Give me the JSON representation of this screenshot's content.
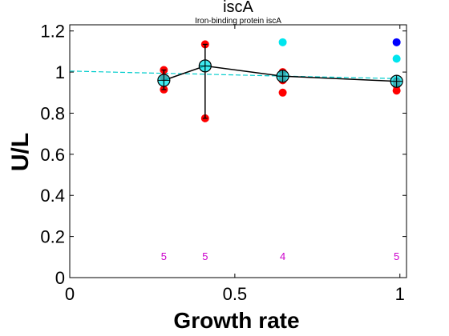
{
  "chart_data": {
    "type": "scatter",
    "title": "iscA",
    "subtitle": "Iron-binding protein iscA",
    "xlabel": "Growth rate",
    "ylabel": "U/L",
    "xlim": [
      0,
      1.02
    ],
    "ylim": [
      0,
      1.23
    ],
    "xticks": [
      {
        "v": 0,
        "label": "0"
      },
      {
        "v": 0.5,
        "label": "0.5"
      },
      {
        "v": 1,
        "label": "1"
      }
    ],
    "yticks": [
      {
        "v": 0,
        "label": "0"
      },
      {
        "v": 0.2,
        "label": "0.2"
      },
      {
        "v": 0.4,
        "label": "0.4"
      },
      {
        "v": 0.6,
        "label": "0.6"
      },
      {
        "v": 0.8,
        "label": "0.8"
      },
      {
        "v": 1,
        "label": "1"
      },
      {
        "v": 1.2,
        "label": "1.2"
      }
    ],
    "grid": false,
    "red_points": [
      {
        "x": 0.285,
        "y": 1.01
      },
      {
        "x": 0.285,
        "y": 0.975
      },
      {
        "x": 0.285,
        "y": 0.915
      },
      {
        "x": 0.41,
        "y": 1.135
      },
      {
        "x": 0.41,
        "y": 0.775
      },
      {
        "x": 0.645,
        "y": 1.0
      },
      {
        "x": 0.645,
        "y": 0.975
      },
      {
        "x": 0.645,
        "y": 0.96
      },
      {
        "x": 0.645,
        "y": 0.9
      },
      {
        "x": 0.99,
        "y": 0.955
      },
      {
        "x": 0.99,
        "y": 0.935
      },
      {
        "x": 0.99,
        "y": 0.91
      }
    ],
    "cyan_points": [
      {
        "x": 0.645,
        "y": 1.145
      },
      {
        "x": 0.99,
        "y": 1.065
      }
    ],
    "blue_points": [
      {
        "x": 0.99,
        "y": 1.145
      }
    ],
    "mean_line": [
      {
        "x": 0.285,
        "y": 0.96,
        "lo": 0.915,
        "hi": 1.01
      },
      {
        "x": 0.41,
        "y": 1.03,
        "lo": 0.775,
        "hi": 1.135
      },
      {
        "x": 0.645,
        "y": 0.98,
        "lo": 0.96,
        "hi": 1.0
      },
      {
        "x": 0.99,
        "y": 0.955,
        "lo": 0.935,
        "hi": 0.97
      }
    ],
    "trend_line": [
      {
        "x": 0.0,
        "y": 1.005
      },
      {
        "x": 0.2,
        "y": 0.997
      },
      {
        "x": 0.4,
        "y": 0.99
      },
      {
        "x": 0.6,
        "y": 0.982
      },
      {
        "x": 0.8,
        "y": 0.975
      },
      {
        "x": 1.0,
        "y": 0.968
      }
    ],
    "counts": [
      {
        "x": 0.285,
        "label": "5"
      },
      {
        "x": 0.41,
        "label": "5"
      },
      {
        "x": 0.645,
        "label": "4"
      },
      {
        "x": 0.99,
        "label": "5"
      }
    ],
    "count_y": 0.105,
    "colors": {
      "red": "#ff0000",
      "cyan": "#00e5ee",
      "blue": "#0000ff",
      "mean": "#000000",
      "trend": "#00cccc",
      "count": "#cc00cc"
    }
  }
}
